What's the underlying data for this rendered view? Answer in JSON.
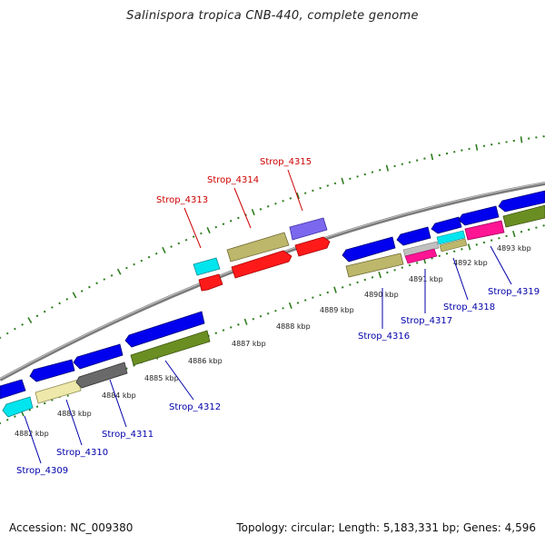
{
  "title": "Salinispora tropica CNB-440, complete genome",
  "footer": {
    "accession": "Accession: NC_009380",
    "summary": "Topology: circular; Length: 5,183,331 bp; Genes: 4,596"
  },
  "colors": {
    "backbone": "#7a7a7a",
    "ticks": "#2e7d1e",
    "label_forward": "#cc0000",
    "label_reverse": "#0000aa",
    "scale_label": "#222222"
  },
  "scale_labels": [
    "4882 kbp",
    "4883 kbp",
    "4884 kbp",
    "4885 kbp",
    "4886 kbp",
    "4887 kbp",
    "4888 kbp",
    "4889 kbp",
    "4890 kbp",
    "4891 kbp",
    "4892 kbp",
    "4893 kbp"
  ],
  "gene_labels": [
    {
      "id": "Strop_4309",
      "text": "Strop_4309",
      "strand": "reverse"
    },
    {
      "id": "Strop_4310",
      "text": "Strop_4310",
      "strand": "reverse"
    },
    {
      "id": "Strop_4311",
      "text": "Strop_4311",
      "strand": "reverse"
    },
    {
      "id": "Strop_4312",
      "text": "Strop_4312",
      "strand": "reverse"
    },
    {
      "id": "Strop_4313",
      "text": "Strop_4313",
      "strand": "forward"
    },
    {
      "id": "Strop_4314",
      "text": "Strop_4314",
      "strand": "forward"
    },
    {
      "id": "Strop_4315",
      "text": "Strop_4315",
      "strand": "forward"
    },
    {
      "id": "Strop_4316",
      "text": "Strop_4316",
      "strand": "reverse"
    },
    {
      "id": "Strop_4317",
      "text": "Strop_4317",
      "strand": "reverse"
    },
    {
      "id": "Strop_4318",
      "text": "Strop_4318",
      "strand": "reverse"
    },
    {
      "id": "Strop_4319",
      "text": "Strop_4319",
      "strand": "reverse"
    }
  ]
}
